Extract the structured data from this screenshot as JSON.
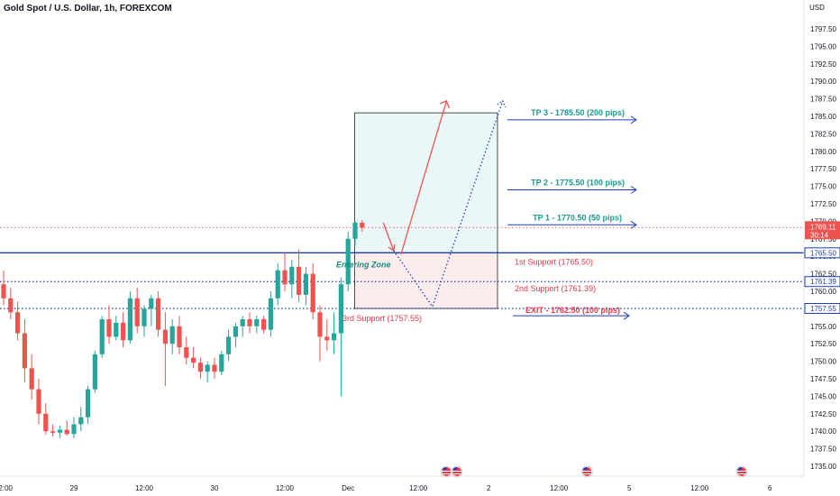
{
  "header": {
    "symbol_title": "Gold Spot / U.S. Dollar, 1h, FOREXCOM",
    "currency": "USD"
  },
  "colors": {
    "up": "#26a69a",
    "down": "#ef5350",
    "blue": "#1e3fb5",
    "teal_text": "#1a9a8f",
    "red_text": "#e8394a"
  },
  "chart_data": {
    "type": "candlestick",
    "ylim": [
      1732.5,
      1800
    ],
    "y_ticks": [
      "1735.00",
      "1737.50",
      "1740.00",
      "1742.50",
      "1745.00",
      "1747.50",
      "1750.00",
      "1752.50",
      "1755.00",
      "1757.50",
      "1760.00",
      "1762.50",
      "1765.00",
      "1767.50",
      "1770.00",
      "1772.50",
      "1775.00",
      "1777.50",
      "1780.00",
      "1782.50",
      "1785.00",
      "1787.50",
      "1790.00",
      "1792.50",
      "1795.00",
      "1797.50"
    ],
    "x_labels": [
      {
        "label": "12:00",
        "i": 0
      },
      {
        "label": "29",
        "i": 10
      },
      {
        "label": "12:00",
        "i": 20
      },
      {
        "label": "30",
        "i": 30
      },
      {
        "label": "12:00",
        "i": 40
      },
      {
        "label": "Dec",
        "i": 49
      },
      {
        "label": "12:00",
        "i": 59
      },
      {
        "label": "2",
        "i": 69
      },
      {
        "label": "12:00",
        "i": 79
      },
      {
        "label": "5",
        "i": 89
      },
      {
        "label": "12:00",
        "i": 99
      },
      {
        "label": "6",
        "i": 109
      }
    ],
    "candles": [
      {
        "o": 1761.0,
        "h": 1763.0,
        "l": 1758.0,
        "c": 1759.0
      },
      {
        "o": 1759.0,
        "h": 1760.5,
        "l": 1756.0,
        "c": 1757.0
      },
      {
        "o": 1757.0,
        "h": 1758.5,
        "l": 1753.0,
        "c": 1754.0
      },
      {
        "o": 1754.0,
        "h": 1756.0,
        "l": 1747.0,
        "c": 1749.0
      },
      {
        "o": 1749.0,
        "h": 1751.0,
        "l": 1744.5,
        "c": 1746.0
      },
      {
        "o": 1746.0,
        "h": 1747.5,
        "l": 1741.0,
        "c": 1742.5
      },
      {
        "o": 1742.5,
        "h": 1744.0,
        "l": 1739.5,
        "c": 1740.0
      },
      {
        "o": 1740.0,
        "h": 1741.0,
        "l": 1739.2,
        "c": 1739.8
      },
      {
        "o": 1739.8,
        "h": 1740.8,
        "l": 1739.0,
        "c": 1740.2
      },
      {
        "o": 1740.2,
        "h": 1741.5,
        "l": 1739.4,
        "c": 1739.6
      },
      {
        "o": 1739.6,
        "h": 1742.0,
        "l": 1739.0,
        "c": 1741.0
      },
      {
        "o": 1741.0,
        "h": 1743.5,
        "l": 1740.0,
        "c": 1742.0
      },
      {
        "o": 1742.0,
        "h": 1746.5,
        "l": 1741.0,
        "c": 1746.0
      },
      {
        "o": 1746.0,
        "h": 1751.5,
        "l": 1745.5,
        "c": 1751.0
      },
      {
        "o": 1751.0,
        "h": 1756.5,
        "l": 1750.5,
        "c": 1756.0
      },
      {
        "o": 1756.0,
        "h": 1758.0,
        "l": 1752.5,
        "c": 1753.5
      },
      {
        "o": 1753.5,
        "h": 1756.5,
        "l": 1753.0,
        "c": 1755.5
      },
      {
        "o": 1755.5,
        "h": 1757.0,
        "l": 1752.0,
        "c": 1753.0
      },
      {
        "o": 1753.0,
        "h": 1760.0,
        "l": 1752.5,
        "c": 1759.0
      },
      {
        "o": 1759.0,
        "h": 1760.5,
        "l": 1754.0,
        "c": 1755.0
      },
      {
        "o": 1755.0,
        "h": 1758.0,
        "l": 1753.5,
        "c": 1757.5
      },
      {
        "o": 1757.5,
        "h": 1759.5,
        "l": 1755.0,
        "c": 1759.0
      },
      {
        "o": 1759.0,
        "h": 1760.0,
        "l": 1753.5,
        "c": 1754.5
      },
      {
        "o": 1754.5,
        "h": 1757.0,
        "l": 1746.5,
        "c": 1752.5
      },
      {
        "o": 1752.5,
        "h": 1756.0,
        "l": 1751.0,
        "c": 1755.0
      },
      {
        "o": 1755.0,
        "h": 1756.5,
        "l": 1751.0,
        "c": 1752.0
      },
      {
        "o": 1752.0,
        "h": 1753.5,
        "l": 1749.5,
        "c": 1750.5
      },
      {
        "o": 1750.5,
        "h": 1752.0,
        "l": 1749.0,
        "c": 1749.8
      },
      {
        "o": 1749.8,
        "h": 1750.5,
        "l": 1747.5,
        "c": 1748.5
      },
      {
        "o": 1748.5,
        "h": 1750.0,
        "l": 1747.0,
        "c": 1749.5
      },
      {
        "o": 1749.5,
        "h": 1750.5,
        "l": 1747.5,
        "c": 1748.5
      },
      {
        "o": 1748.5,
        "h": 1751.5,
        "l": 1748.0,
        "c": 1751.0
      },
      {
        "o": 1751.0,
        "h": 1754.5,
        "l": 1750.0,
        "c": 1753.5
      },
      {
        "o": 1753.5,
        "h": 1755.5,
        "l": 1752.0,
        "c": 1755.0
      },
      {
        "o": 1755.0,
        "h": 1756.5,
        "l": 1753.5,
        "c": 1756.0
      },
      {
        "o": 1756.0,
        "h": 1757.0,
        "l": 1754.0,
        "c": 1755.0
      },
      {
        "o": 1755.0,
        "h": 1756.5,
        "l": 1754.0,
        "c": 1756.0
      },
      {
        "o": 1756.0,
        "h": 1756.5,
        "l": 1754.0,
        "c": 1754.5
      },
      {
        "o": 1754.5,
        "h": 1760.0,
        "l": 1753.5,
        "c": 1759.0
      },
      {
        "o": 1759.0,
        "h": 1764.0,
        "l": 1758.0,
        "c": 1763.0
      },
      {
        "o": 1763.0,
        "h": 1765.5,
        "l": 1760.0,
        "c": 1761.0
      },
      {
        "o": 1761.0,
        "h": 1764.5,
        "l": 1759.0,
        "c": 1763.5
      },
      {
        "o": 1763.5,
        "h": 1766.0,
        "l": 1758.5,
        "c": 1759.5
      },
      {
        "o": 1759.5,
        "h": 1763.5,
        "l": 1758.0,
        "c": 1762.5
      },
      {
        "o": 1762.5,
        "h": 1764.0,
        "l": 1756.0,
        "c": 1757.0
      },
      {
        "o": 1757.0,
        "h": 1758.0,
        "l": 1750.0,
        "c": 1753.5
      },
      {
        "o": 1753.5,
        "h": 1756.0,
        "l": 1751.5,
        "c": 1753.0
      },
      {
        "o": 1753.0,
        "h": 1757.0,
        "l": 1751.0,
        "c": 1754.0
      },
      {
        "o": 1754.0,
        "h": 1762.0,
        "l": 1745.0,
        "c": 1761.0
      },
      {
        "o": 1761.0,
        "h": 1768.5,
        "l": 1760.0,
        "c": 1767.5
      },
      {
        "o": 1767.5,
        "h": 1770.0,
        "l": 1766.5,
        "c": 1769.8
      },
      {
        "o": 1769.8,
        "h": 1770.2,
        "l": 1768.5,
        "c": 1769.1
      }
    ],
    "levels": [
      {
        "name": "resistance",
        "price": 1765.5,
        "style": "solid",
        "tag": "1765.50"
      },
      {
        "name": "support-2",
        "price": 1761.39,
        "style": "dotted",
        "tag": "1761.39"
      },
      {
        "name": "support-3",
        "price": 1757.55,
        "style": "dotted",
        "tag": "1757.55"
      }
    ],
    "current_price": {
      "tag": "1769.11",
      "countdown": "30:14",
      "price": 1769.11
    },
    "zone": {
      "top": 1785.5,
      "mid": 1765.5,
      "bottom": 1757.55,
      "i_start": 50,
      "i_end": 70
    },
    "annotations": {
      "tp3": "TP 3 - 1785.50 (200 pips)",
      "tp2": "TP 2 - 1775.50 (100 pips)",
      "tp1": "TP 1 - 1770.50 (50 pips)",
      "exit": "EXIT - 1762.50 (100 pips)",
      "support1": "1st Support (1765.50)",
      "support2": "2nd Support (1761.39)",
      "support3": "3rd Support (1757.55)",
      "entering": "Entering Zone"
    },
    "tp_arrows": [
      {
        "name": "tp3",
        "price": 1784.5
      },
      {
        "name": "tp2",
        "price": 1774.5
      },
      {
        "name": "tp1",
        "price": 1769.5
      }
    ],
    "exit_arrow": {
      "price": 1756.5
    },
    "solid_path": [
      {
        "i": 54,
        "p": 1767.5
      },
      {
        "i": 55.5,
        "p": 1765.8
      },
      {
        "i": 63,
        "p": 1787.2
      }
    ],
    "dotted_path": [
      {
        "i": 55.5,
        "p": 1765.8
      },
      {
        "i": 61,
        "p": 1757.8
      },
      {
        "i": 71,
        "p": 1787.2
      }
    ],
    "events": [
      {
        "i": 63
      },
      {
        "i": 64.5
      },
      {
        "i": 83
      },
      {
        "i": 105
      }
    ]
  }
}
